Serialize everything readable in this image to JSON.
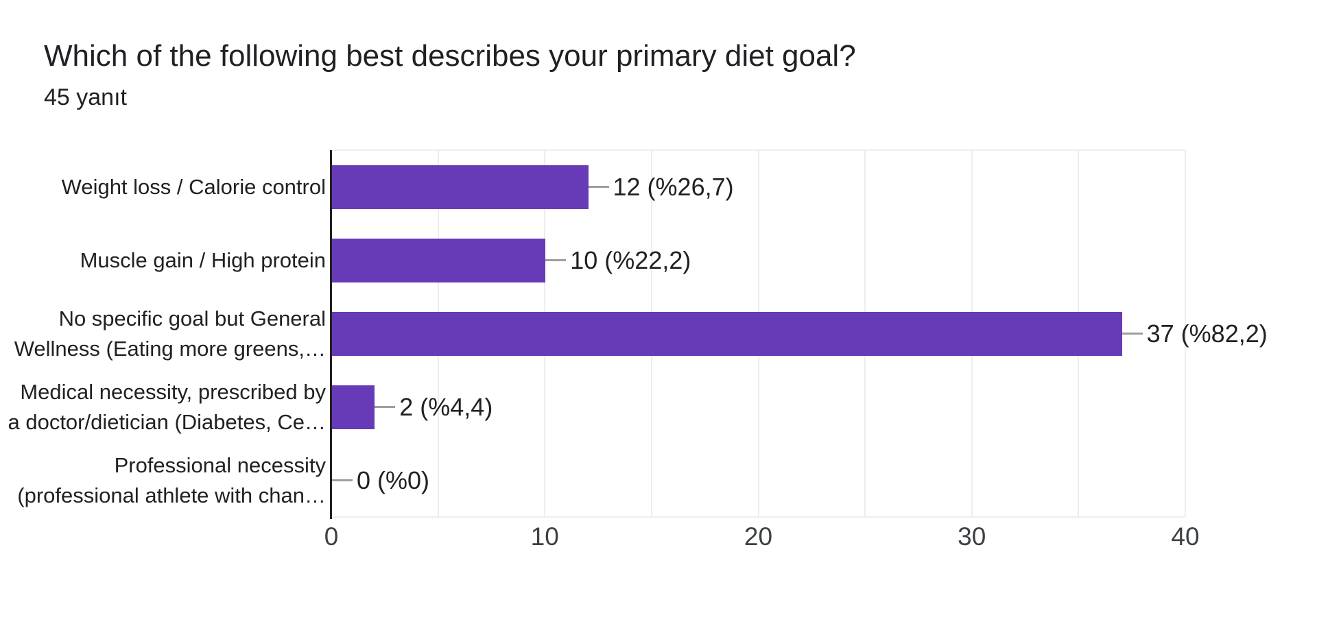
{
  "chart_data": {
    "type": "bar",
    "orientation": "horizontal",
    "title": "Which of the following best describes your primary diet goal?",
    "subtitle": "45 yanıt",
    "categories": [
      "Weight loss / Calorie control",
      "Muscle gain / High protein",
      "No specific goal but General Wellness (Eating more greens,…",
      "Medical necessity, prescribed by a doctor/dietician (Diabetes, Ce…",
      "Professional necessity (professional athlete with chan…"
    ],
    "category_label_lines": [
      [
        "Weight loss / Calorie control"
      ],
      [
        "Muscle gain / High protein"
      ],
      [
        "No specific goal but General",
        "Wellness (Eating more greens,…"
      ],
      [
        "Medical necessity, prescribed by",
        "a doctor/dietician (Diabetes, Ce…"
      ],
      [
        "Professional necessity",
        "(professional athlete with chan…"
      ]
    ],
    "values": [
      12,
      10,
      37,
      2,
      0
    ],
    "value_labels": [
      "12 (%26,7)",
      "10 (%22,2)",
      "37 (%82,2)",
      "2 (%4,4)",
      "0 (%0)"
    ],
    "xlabel": "",
    "ylabel": "",
    "xlim": [
      0,
      40
    ],
    "x_ticks": [
      "0",
      "10",
      "20",
      "30",
      "40"
    ],
    "gridline_step": 5,
    "grid": true,
    "legend_position": "none",
    "colors": {
      "bar": "#673ab7",
      "axis_line": "#212121",
      "gridline": "#ededed",
      "connector": "#9e9e9e",
      "title_text": "#202124",
      "label_text": "#212121",
      "tick_text": "#3c4043",
      "background": "#ffffff"
    }
  }
}
